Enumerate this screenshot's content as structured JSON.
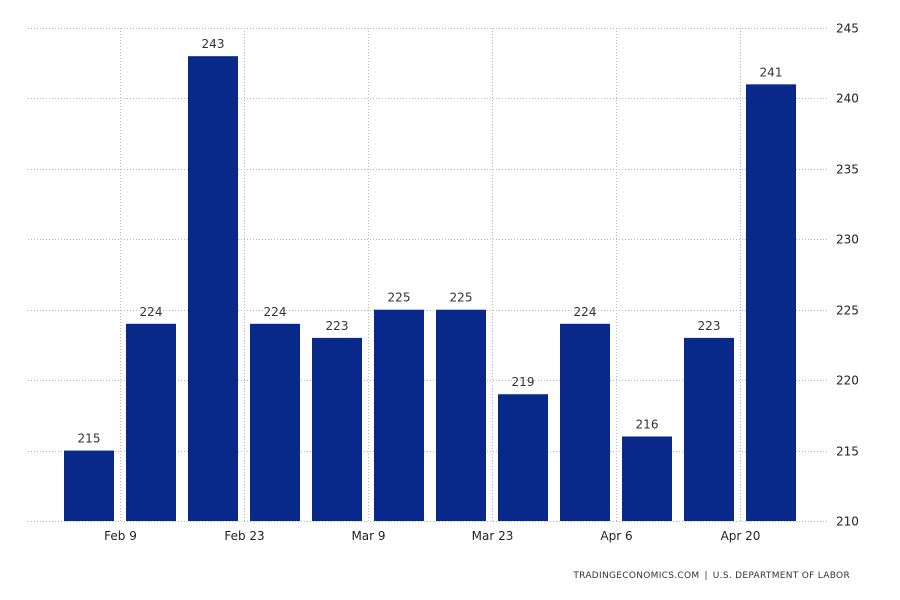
{
  "chart_data": {
    "type": "bar",
    "categories": [
      "",
      "",
      "",
      "",
      "",
      "",
      "",
      "",
      "",
      "",
      "",
      ""
    ],
    "values": [
      215,
      224,
      243,
      224,
      223,
      225,
      225,
      219,
      224,
      216,
      223,
      241
    ],
    "data_labels": [
      "215",
      "224",
      "243",
      "224",
      "223",
      "225",
      "225",
      "219",
      "224",
      "216",
      "223",
      "241"
    ],
    "x_tick_labels": [
      {
        "bar_index": 0.5,
        "label": "Feb 9"
      },
      {
        "bar_index": 2.5,
        "label": "Feb 23"
      },
      {
        "bar_index": 4.5,
        "label": "Mar 9"
      },
      {
        "bar_index": 6.5,
        "label": "Mar 23"
      },
      {
        "bar_index": 8.5,
        "label": "Apr 6"
      },
      {
        "bar_index": 10.5,
        "label": "Apr 20"
      }
    ],
    "y_ticks": [
      210,
      215,
      220,
      225,
      230,
      235,
      240,
      245
    ],
    "ylim": [
      210,
      245
    ],
    "y_axis_side": "right",
    "grid": true,
    "bar_color": "#08298a"
  },
  "source": {
    "site": "TRADINGECONOMICS.COM",
    "separator": "|",
    "agency": "U.S. DEPARTMENT OF LABOR"
  }
}
